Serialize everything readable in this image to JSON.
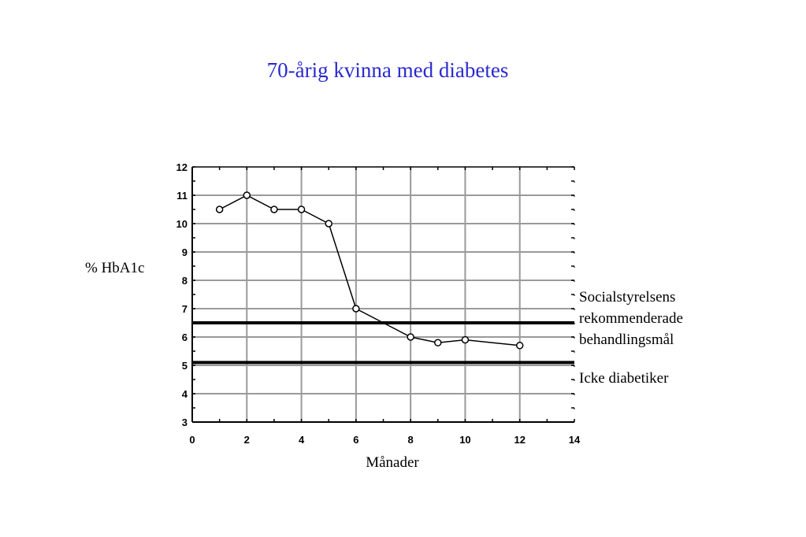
{
  "title": "70-årig kvinna med diabetes",
  "chart_data": {
    "type": "line",
    "xlabel": "Månader",
    "ylabel": "% HbA1c",
    "xlim": [
      0,
      14
    ],
    "ylim": [
      3,
      12
    ],
    "xticks": [
      0,
      2,
      4,
      6,
      8,
      10,
      12,
      14
    ],
    "yticks": [
      3,
      4,
      5,
      6,
      7,
      8,
      9,
      10,
      11,
      12
    ],
    "grid": true,
    "series": [
      {
        "x": [
          1,
          2,
          3,
          4,
          5,
          6,
          8,
          9,
          10,
          12
        ],
        "y": [
          10.5,
          11.0,
          10.5,
          10.5,
          10.0,
          7.0,
          6.0,
          5.8,
          5.9,
          5.7
        ],
        "marker": "open-circle",
        "color": "#000000"
      }
    ],
    "reference_lines": [
      {
        "y": 6.5,
        "label": "Socialstyrelsens rekommenderade behandlingsmål",
        "label_lines": [
          "Socialstyrelsens",
          "rekommenderade",
          "behandlingsmål"
        ]
      },
      {
        "y": 5.1,
        "label": "Icke diabetiker"
      }
    ]
  }
}
